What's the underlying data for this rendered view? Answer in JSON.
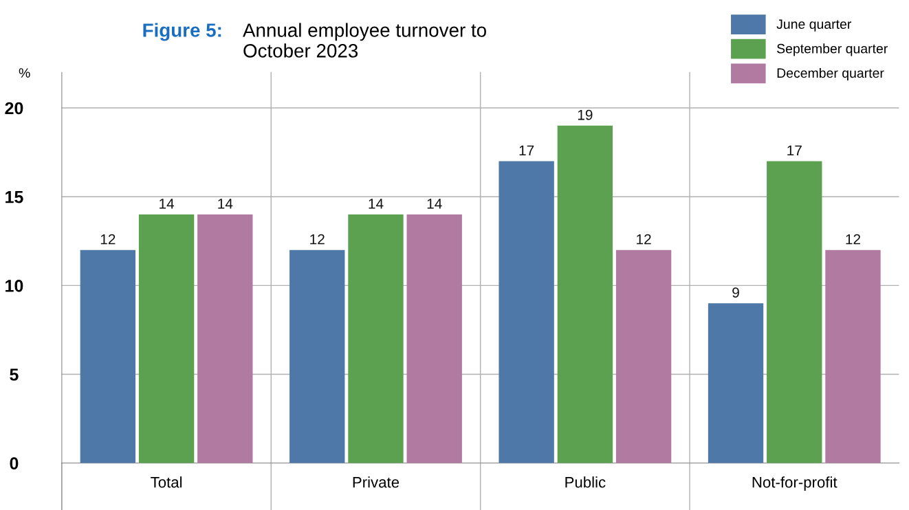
{
  "chart_data": {
    "type": "bar",
    "title": "Figure 5:",
    "subtitle": "Annual employee turnover to October 2023",
    "ylabel": "%",
    "categories": [
      "Total",
      "Private",
      "Public",
      "Not-for-profit"
    ],
    "series": [
      {
        "name": "June quarter",
        "color": "#4e78a7",
        "values": [
          12,
          12,
          17,
          9
        ]
      },
      {
        "name": "September quarter",
        "color": "#5ba150",
        "values": [
          14,
          14,
          19,
          17
        ]
      },
      {
        "name": "December quarter",
        "color": "#b07aa1",
        "values": [
          14,
          14,
          12,
          12
        ]
      }
    ],
    "ylim": [
      0,
      22
    ],
    "yticks": [
      0,
      5,
      10,
      15,
      20
    ],
    "grid": true,
    "legend": "top right",
    "data_labels": true
  }
}
